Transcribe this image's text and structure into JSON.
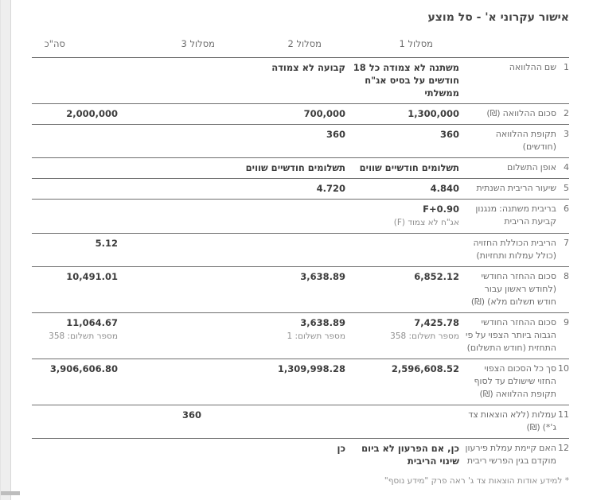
{
  "title": "אישור עקרוני א' - סל מוצע",
  "table": {
    "headers": {
      "track1": "מסלול 1",
      "track2": "מסלול 2",
      "track3": "מסלול 3",
      "total": "סה\"כ"
    },
    "rows": [
      {
        "num": "1",
        "label": "שם ההלוואה",
        "track1": "משתנה לא צמודה כל 18 חודשים על בסיס אג\"ח ממשלתי",
        "track2": "קבועה לא צמודה"
      },
      {
        "num": "2",
        "label": "סכום ההלוואה (₪)",
        "track1": "1,300,000",
        "track2": "700,000",
        "total": "2,000,000"
      },
      {
        "num": "3",
        "label": "תקופת ההלוואה (חודשים)",
        "track1": "360",
        "track2": "360"
      },
      {
        "num": "4",
        "label": "אופן התשלום",
        "track1": "תשלומים חודשיים שווים",
        "track2": "תשלומים חודשיים שווים"
      },
      {
        "num": "5",
        "label": "שיעור הריבית השנתית",
        "track1": "4.840",
        "track2": "4.720"
      },
      {
        "num": "6",
        "label": "בריבית משתנה: מנגנון קביעת הריבית",
        "track1": "F+0.90",
        "track1_sub": "אג\"ח לא צמוד (F)"
      },
      {
        "num": "7",
        "label": "הריבית הכוללת החזויה (כולל עמלות ותחזיות)",
        "total": "5.12"
      },
      {
        "num": "8",
        "label": "סכום ההחזר החודשי (לחודש ראשון עבור חודש תשלום מלא) (₪)",
        "track1": "6,852.12",
        "track2": "3,638.89",
        "total": "10,491.01"
      },
      {
        "num": "9",
        "label": "סכום ההחזר החודשי הגבוה ביותר הצפוי על פי התחזית (חודש התשלום)",
        "track1": "7,425.78",
        "track1_sub": "מספר תשלום: 358",
        "track2": "3,638.89",
        "track2_sub": "מספר תשלום: 1",
        "total": "11,064.67",
        "total_sub": "מספר תשלום: 358"
      },
      {
        "num": "10",
        "label": "סך כל הסכום הצפוי החזוי שישולם עד לסוף תקופת ההלוואה (₪)",
        "track1": "2,596,608.52",
        "track2": "1,309,998.28",
        "total": "3,906,606.80"
      },
      {
        "num": "11",
        "label": "עמלות (ללא הוצאות צד ג'*) (₪)",
        "track3": "360"
      },
      {
        "num": "12",
        "label": "האם קיימת עמלת פירעון מוקדם בגין הפרשי ריבית",
        "track1": "כן, אם הפרעון לא ביום שינוי הריבית",
        "track2": "כן"
      }
    ],
    "footnote": "* למידע אודות הוצאות צד ג' ראה פרק \"מידע נוסף\""
  }
}
